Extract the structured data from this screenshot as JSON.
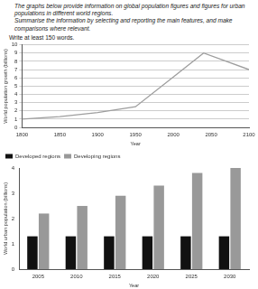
{
  "instructions": [
    "The graphs below provide information on global population figures and figures for urban populations in different world regions.",
    "Summarise the information by selecting and reporting the main features, and make comparisons where relevant.",
    "Write at least 150 words."
  ],
  "chart_data": [
    {
      "type": "line",
      "x": [
        1800,
        1850,
        1900,
        1950,
        2000,
        2040,
        2100
      ],
      "values": [
        1,
        1.3,
        1.8,
        2.5,
        6.1,
        9,
        7
      ],
      "color": "#9e9e9e",
      "xlabel": "Year",
      "ylabel": "World population growth (billions)",
      "xlim": [
        1800,
        2100
      ],
      "xticks": [
        1800,
        1850,
        1900,
        1950,
        2000,
        2050,
        2100
      ],
      "ylim": [
        0,
        10
      ],
      "yticks": [
        0,
        1,
        2,
        3,
        4,
        5,
        6,
        7,
        8,
        9,
        10
      ],
      "grid": true
    },
    {
      "type": "bar",
      "categories": [
        "2005",
        "2010",
        "2015",
        "2020",
        "2025",
        "2030"
      ],
      "series": [
        {
          "name": "Developed regions",
          "color": "#111111",
          "values": [
            1.3,
            1.3,
            1.3,
            1.3,
            1.3,
            1.3
          ]
        },
        {
          "name": "Developing regions",
          "color": "#999999",
          "values": [
            2.2,
            2.5,
            2.9,
            3.3,
            3.8,
            4.0
          ]
        }
      ],
      "xlabel": "Year",
      "ylabel": "World urban population (billions)",
      "ylim": [
        0,
        4
      ],
      "yticks": [
        0,
        1,
        2,
        3,
        4
      ],
      "grid": false,
      "legend": "top-left"
    }
  ]
}
